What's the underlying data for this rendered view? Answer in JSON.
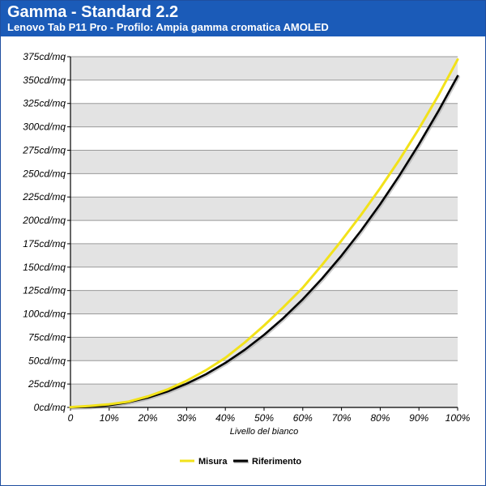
{
  "header": {
    "title": "Gamma - Standard 2.2",
    "subtitle": "Lenovo Tab P11 Pro - Profilo: Ampia gamma cromatica AMOLED"
  },
  "chart_data": {
    "type": "line",
    "xlabel": "Livello del bianco",
    "ylabel": "",
    "xlim": [
      0,
      100
    ],
    "ylim": [
      0,
      375
    ],
    "x_ticks": [
      "0",
      "10%",
      "20%",
      "30%",
      "40%",
      "50%",
      "60%",
      "70%",
      "80%",
      "90%",
      "100%"
    ],
    "y_ticks": [
      "0cd/mq",
      "25cd/mq",
      "50cd/mq",
      "75cd/mq",
      "100cd/mq",
      "125cd/mq",
      "150cd/mq",
      "175cd/mq",
      "200cd/mq",
      "225cd/mq",
      "250cd/mq",
      "275cd/mq",
      "300cd/mq",
      "325cd/mq",
      "350cd/mq",
      "375cd/mq"
    ],
    "grid": true,
    "legend_position": "bottom",
    "x": [
      0,
      5,
      10,
      15,
      20,
      25,
      30,
      35,
      40,
      45,
      50,
      55,
      60,
      65,
      70,
      75,
      80,
      85,
      90,
      95,
      100
    ],
    "series": [
      {
        "name": "Misura",
        "color": "#f2e21a",
        "values": [
          0.3,
          1.6,
          3.4,
          6.2,
          11.8,
          19.1,
          28.5,
          39.8,
          53.0,
          69.4,
          87.6,
          107.2,
          128.0,
          152.5,
          178.4,
          205.6,
          234.5,
          265.1,
          298.0,
          333.5,
          372.0
        ]
      },
      {
        "name": "Riferimento",
        "color": "#000000",
        "values": [
          0.0,
          0.5,
          2.3,
          5.6,
          10.4,
          17.0,
          25.4,
          35.5,
          47.6,
          61.6,
          77.6,
          95.6,
          115.7,
          137.9,
          162.3,
          188.8,
          217.4,
          248.3,
          281.4,
          316.7,
          354.3
        ]
      }
    ]
  }
}
